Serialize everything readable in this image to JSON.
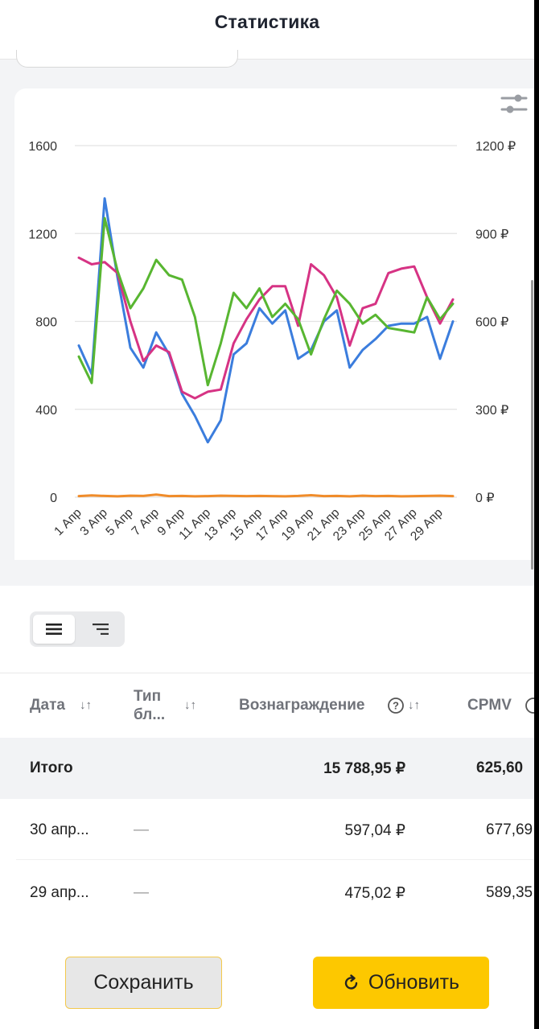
{
  "header": {
    "title": "Статистика"
  },
  "chart_data": {
    "type": "line",
    "x": [
      "1 Апр",
      "2 Апр",
      "3 Апр",
      "4 Апр",
      "5 Апр",
      "6 Апр",
      "7 Апр",
      "8 Апр",
      "9 Апр",
      "10 Апр",
      "11 Апр",
      "12 Апр",
      "13 Апр",
      "14 Апр",
      "15 Апр",
      "16 Апр",
      "17 Апр",
      "18 Апр",
      "19 Апр",
      "20 Апр",
      "21 Апр",
      "22 Апр",
      "23 Апр",
      "24 Апр",
      "25 Апр",
      "26 Апр",
      "27 Апр",
      "28 Апр",
      "29 Апр",
      "30 Апр"
    ],
    "x_tick_labels": [
      "1 Апр",
      "3 Апр",
      "5 Апр",
      "7 Апр",
      "9 Апр",
      "11 Апр",
      "13 Апр",
      "15 Апр",
      "17 Апр",
      "19 Апр",
      "21 Апр",
      "23 Апр",
      "25 Апр",
      "27 Апр",
      "29 Апр"
    ],
    "y_left": {
      "ylim": [
        0,
        1600
      ],
      "ticks": [
        "0",
        "400",
        "800",
        "1200",
        "1600"
      ]
    },
    "y_right": {
      "ylim": [
        0,
        1200
      ],
      "ticks": [
        "0 ₽",
        "300 ₽",
        "600 ₽",
        "900 ₽",
        "1200 ₽"
      ]
    },
    "grid": true,
    "legend": "none",
    "series": [
      {
        "axis": "left",
        "color": "#3b7ddd",
        "values": [
          690,
          560,
          1360,
          1000,
          680,
          590,
          750,
          650,
          470,
          370,
          250,
          350,
          650,
          700,
          860,
          790,
          850,
          630,
          670,
          800,
          850,
          590,
          670,
          720,
          780,
          790,
          790,
          820,
          630,
          800
        ]
      },
      {
        "axis": "left",
        "color": "#d63384",
        "values": [
          1090,
          1060,
          1070,
          1020,
          800,
          620,
          690,
          660,
          480,
          450,
          480,
          490,
          700,
          810,
          900,
          960,
          960,
          780,
          1060,
          1010,
          910,
          690,
          860,
          880,
          1020,
          1040,
          1050,
          910,
          790,
          900
        ]
      },
      {
        "axis": "left",
        "color": "#58b631",
        "values": [
          640,
          520,
          1270,
          1030,
          860,
          950,
          1080,
          1010,
          990,
          820,
          510,
          700,
          930,
          860,
          950,
          820,
          880,
          810,
          650,
          810,
          940,
          880,
          790,
          830,
          770,
          760,
          750,
          910,
          810,
          880
        ]
      },
      {
        "axis": "left",
        "color": "#f08c2a",
        "values": [
          5,
          8,
          6,
          4,
          7,
          6,
          12,
          5,
          6,
          4,
          5,
          7,
          6,
          5,
          6,
          5,
          4,
          6,
          9,
          5,
          6,
          4,
          7,
          5,
          6,
          4,
          5,
          6,
          7,
          5
        ]
      }
    ]
  },
  "view_toggle": {
    "active": "list",
    "icons": [
      "list-icon",
      "tree-icon"
    ]
  },
  "table": {
    "columns": [
      {
        "label": "Дата"
      },
      {
        "label_line1": "Тип",
        "label_line2": "бл..."
      },
      {
        "label": "Вознаграждение"
      },
      {
        "label": "CPMV"
      }
    ],
    "total": {
      "label": "Итого",
      "reward": "15 788,95 ₽",
      "cpmv": "625,60"
    },
    "rows": [
      {
        "date": "30 апр...",
        "type": "—",
        "reward": "597,04 ₽",
        "cpmv": "677,69"
      },
      {
        "date": "29 апр...",
        "type": "—",
        "reward": "475,02 ₽",
        "cpmv": "589,35"
      }
    ]
  },
  "footer": {
    "save_label": "Сохранить",
    "refresh_label": "Обновить"
  }
}
